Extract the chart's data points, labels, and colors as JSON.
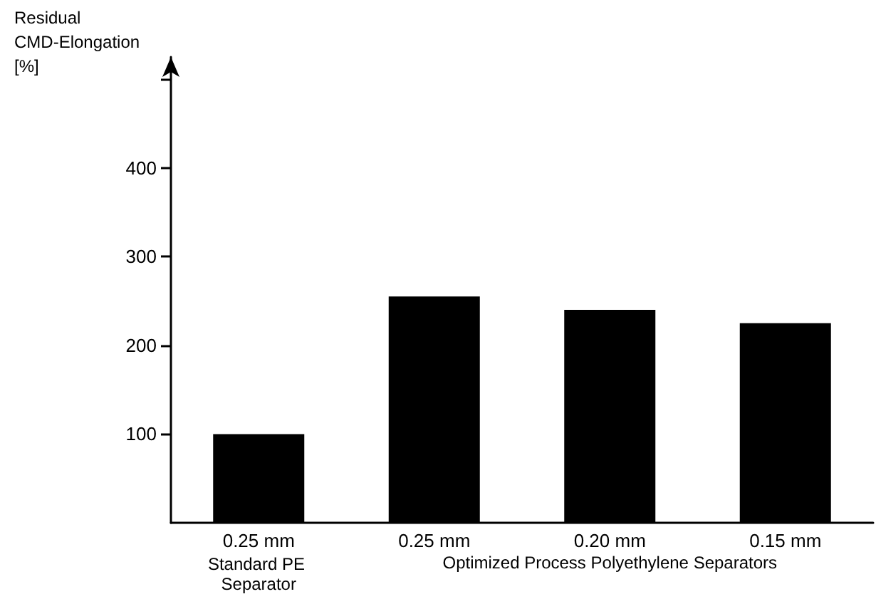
{
  "chart_data": {
    "type": "bar",
    "ylabel": "Residual CMD-Elongation [%]",
    "categories": [
      "0.25 mm",
      "0.25 mm",
      "0.20 mm",
      "0.15 mm"
    ],
    "values": [
      100,
      255,
      240,
      225
    ],
    "color": "#000000",
    "ylim": [
      0,
      525
    ],
    "yticks": [
      100,
      200,
      300,
      400,
      {
        "value": 500,
        "label": null
      }
    ],
    "grid": false,
    "annotations": [
      "Standard PE Separator",
      "Optimized Process Polyethylene Separators"
    ]
  }
}
